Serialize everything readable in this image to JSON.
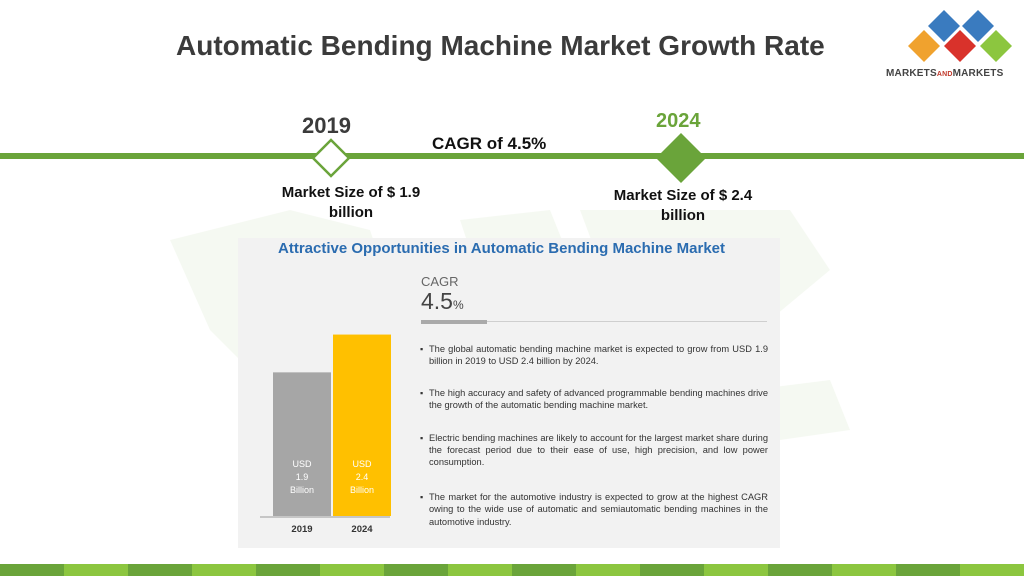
{
  "header": {
    "title": "Automatic Bending Machine Market Growth Rate"
  },
  "logo": {
    "text_main": "MARKETS",
    "text_and": "AND",
    "text_end": "MARKETS",
    "tile_colors": [
      "#3a7bbf",
      "#d9322b",
      "#8cc63f",
      "#f0a22e"
    ]
  },
  "timeline": {
    "start_year": "2019",
    "end_year": "2024",
    "cagr_label": "CAGR of 4.5%",
    "start_market_size": "Market Size of $ 1.9 billion",
    "end_market_size": "Market Size of $ 2.4 billion",
    "accent_color": "#6aa43a"
  },
  "panel": {
    "title": "Attractive Opportunities in Automatic Bending Machine Market",
    "cagr_label": "CAGR",
    "cagr_value": "4.5",
    "cagr_unit": "%",
    "bullets": [
      "The global automatic bending machine market is expected to grow from USD 1.9 billion in 2019 to USD 2.4 billion by 2024.",
      "The high accuracy and safety of advanced programmable bending machines drive the growth of the automatic bending machine market.",
      "Electric bending machines are likely to account for the largest market share during the forecast period due to their ease of use, high precision, and low power consumption.",
      "The market for the automotive industry is expected to grow at the highest CAGR owing to the wide use of automatic and semiautomatic bending machines in the automotive industry."
    ]
  },
  "chart_data": {
    "type": "bar",
    "categories": [
      "2019",
      "2024"
    ],
    "values": [
      1.9,
      2.4
    ],
    "bar_labels": [
      [
        "USD",
        "1.9",
        "Billion"
      ],
      [
        "USD",
        "2.4",
        "Billion"
      ]
    ],
    "colors": [
      "#a6a6a6",
      "#ffc000"
    ],
    "ylim": [
      0,
      3.0
    ],
    "grid": false
  },
  "footer": {
    "stripe_colors": [
      "#6aa43a",
      "#8cc63f",
      "#6aa43a",
      "#8cc63f",
      "#6aa43a",
      "#8cc63f",
      "#6aa43a",
      "#8cc63f",
      "#6aa43a",
      "#8cc63f",
      "#6aa43a",
      "#8cc63f",
      "#6aa43a",
      "#8cc63f",
      "#6aa43a",
      "#8cc63f"
    ]
  }
}
